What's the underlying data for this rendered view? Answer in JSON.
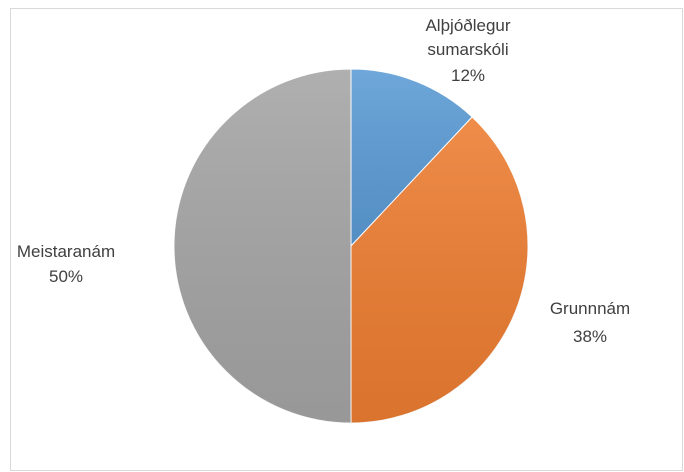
{
  "chart_data": {
    "type": "pie",
    "categories": [
      "Alþjóðlegur sumarskóli",
      "Grunnnám",
      "Meistaranám"
    ],
    "values": [
      12,
      38,
      50
    ],
    "value_labels": [
      "12%",
      "38%",
      "50%"
    ],
    "colors": [
      "#5b9bd5",
      "#ed7d31",
      "#a5a5a5"
    ]
  }
}
